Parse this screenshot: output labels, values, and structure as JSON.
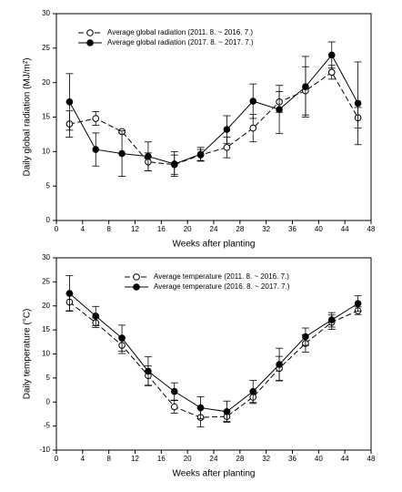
{
  "chart_data": [
    {
      "type": "line",
      "xlabel": "Weeks after planting",
      "ylabel": "Daily global radiation (MJ/m²)",
      "x": [
        2,
        6,
        10,
        14,
        18,
        22,
        26,
        30,
        34,
        38,
        42,
        46
      ],
      "xlim": [
        0,
        48
      ],
      "xticks": [
        0,
        4,
        8,
        12,
        16,
        20,
        24,
        28,
        32,
        36,
        40,
        44,
        48
      ],
      "ylim": [
        0,
        30
      ],
      "yticks": [
        0,
        5,
        10,
        15,
        20,
        25,
        30
      ],
      "legend": "upper-left",
      "series": [
        {
          "name": "Average global radiation (2011. 8. ~ 2016. 7.)",
          "color": "#000000",
          "marker": "open",
          "dashed": true,
          "values": [
            14.0,
            14.8,
            12.9,
            8.5,
            8.1,
            9.5,
            10.6,
            13.4,
            17.2,
            18.8,
            21.5,
            14.9
          ],
          "errors": [
            1.9,
            1.0,
            0.2,
            1.3,
            1.4,
            0.8,
            1.5,
            2.0,
            1.5,
            3.5,
            1.0,
            1.5
          ]
        },
        {
          "name": "Average global radiation (2017. 8. ~ 2017. 7.)",
          "color": "#000000",
          "marker": "filled",
          "dashed": false,
          "values": [
            17.2,
            10.3,
            9.7,
            9.3,
            8.2,
            9.6,
            13.2,
            17.3,
            16.1,
            19.4,
            24.0,
            17.0
          ],
          "errors": [
            4.1,
            2.4,
            3.3,
            2.1,
            1.8,
            1.0,
            2.0,
            2.5,
            3.5,
            4.4,
            1.9,
            6.0
          ]
        }
      ]
    },
    {
      "type": "line",
      "xlabel": "Weeks after planting",
      "ylabel": "Daily temperature (°C)",
      "x": [
        2,
        6,
        10,
        14,
        18,
        22,
        26,
        30,
        34,
        38,
        42,
        46
      ],
      "xlim": [
        0,
        48
      ],
      "xticks": [
        0,
        4,
        8,
        12,
        16,
        20,
        24,
        28,
        32,
        36,
        40,
        44,
        48
      ],
      "ylim": [
        -10,
        30
      ],
      "yticks": [
        -10,
        -5,
        0,
        5,
        10,
        15,
        20,
        25,
        30
      ],
      "legend": "upper-center",
      "series": [
        {
          "name": "Average temperature (2011. 8. ~ 2016. 7.)",
          "color": "#000000",
          "marker": "open",
          "dashed": true,
          "values": [
            20.8,
            16.5,
            11.8,
            5.5,
            -1.0,
            -3.2,
            -3.0,
            1.0,
            7.0,
            12.2,
            16.6,
            19.0
          ],
          "errors": [
            1.8,
            1.0,
            1.7,
            2.0,
            1.3,
            2.0,
            1.0,
            1.3,
            2.5,
            1.8,
            1.5,
            0.8
          ]
        },
        {
          "name": "Average temperature (2016. 8. ~ 2017. 7.)",
          "color": "#000000",
          "marker": "filled",
          "dashed": false,
          "values": [
            22.6,
            17.9,
            13.3,
            6.4,
            2.2,
            -1.2,
            -2.0,
            2.2,
            7.8,
            13.6,
            17.1,
            20.5
          ],
          "errors": [
            3.7,
            2.0,
            2.7,
            3.0,
            1.8,
            2.3,
            2.2,
            2.3,
            3.4,
            1.8,
            1.5,
            1.6
          ]
        }
      ]
    }
  ]
}
